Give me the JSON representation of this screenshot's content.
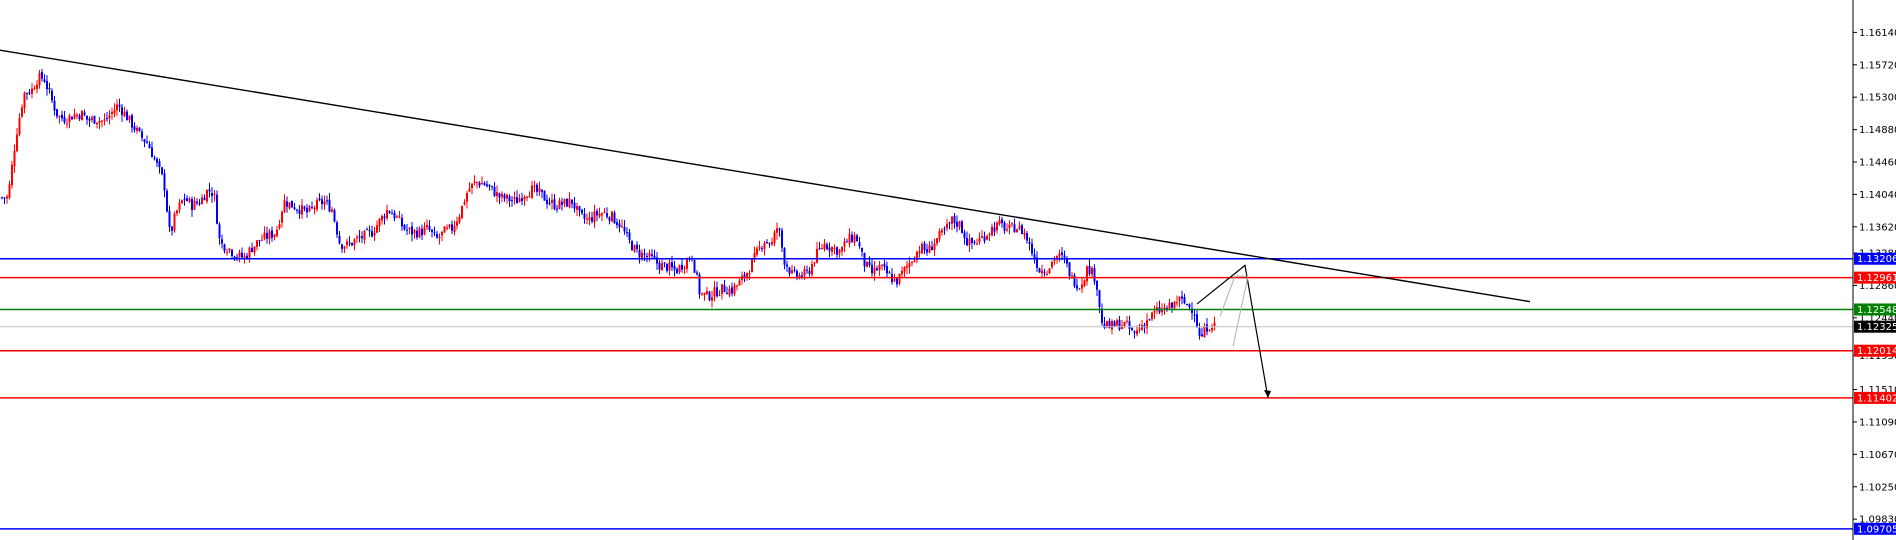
{
  "chart_data": {
    "type": "candlestick",
    "title": "",
    "ylim": [
      1.0956,
      1.1656
    ],
    "yticks": [
      "1.16140",
      "1.15720",
      "1.15300",
      "1.14880",
      "1.14460",
      "1.14040",
      "1.13620",
      "1.13280",
      "1.12860",
      "1.12440",
      "1.11950",
      "1.11510",
      "1.11090",
      "1.10670",
      "1.10250",
      "1.09830"
    ],
    "ytick_values": [
      1.1614,
      1.1572,
      1.153,
      1.1488,
      1.1446,
      1.1404,
      1.1362,
      1.1328,
      1.1286,
      1.1244,
      1.1195,
      1.1151,
      1.1109,
      1.1067,
      1.1025,
      1.0983
    ],
    "up_color": "#ff0000",
    "down_color": "#0000ff",
    "anchors": [
      [
        0,
        1.14
      ],
      [
        8,
        1.14
      ],
      [
        16,
        1.148
      ],
      [
        24,
        1.1535
      ],
      [
        32,
        1.154
      ],
      [
        38,
        1.1555
      ],
      [
        44,
        1.1555
      ],
      [
        52,
        1.1525
      ],
      [
        58,
        1.1505
      ],
      [
        66,
        1.1502
      ],
      [
        74,
        1.1507
      ],
      [
        82,
        1.1508
      ],
      [
        88,
        1.15
      ],
      [
        96,
        1.1502
      ],
      [
        104,
        1.1498
      ],
      [
        112,
        1.151
      ],
      [
        118,
        1.152
      ],
      [
        124,
        1.151
      ],
      [
        132,
        1.1495
      ],
      [
        140,
        1.148
      ],
      [
        148,
        1.147
      ],
      [
        156,
        1.1445
      ],
      [
        164,
        1.142
      ],
      [
        170,
        1.135
      ],
      [
        176,
        1.138
      ],
      [
        184,
        1.14
      ],
      [
        192,
        1.139
      ],
      [
        200,
        1.1395
      ],
      [
        208,
        1.141
      ],
      [
        214,
        1.1405
      ],
      [
        220,
        1.134
      ],
      [
        228,
        1.1335
      ],
      [
        236,
        1.1325
      ],
      [
        244,
        1.1322
      ],
      [
        252,
        1.1335
      ],
      [
        260,
        1.1345
      ],
      [
        268,
        1.135
      ],
      [
        276,
        1.1355
      ],
      [
        284,
        1.1395
      ],
      [
        292,
        1.139
      ],
      [
        300,
        1.1385
      ],
      [
        308,
        1.138
      ],
      [
        316,
        1.139
      ],
      [
        324,
        1.1395
      ],
      [
        332,
        1.1385
      ],
      [
        340,
        1.134
      ],
      [
        348,
        1.1338
      ],
      [
        356,
        1.1345
      ],
      [
        364,
        1.135
      ],
      [
        372,
        1.1355
      ],
      [
        380,
        1.137
      ],
      [
        388,
        1.1385
      ],
      [
        396,
        1.1375
      ],
      [
        404,
        1.136
      ],
      [
        412,
        1.1355
      ],
      [
        420,
        1.1355
      ],
      [
        428,
        1.136
      ],
      [
        436,
        1.1345
      ],
      [
        444,
        1.1355
      ],
      [
        452,
        1.136
      ],
      [
        460,
        1.138
      ],
      [
        468,
        1.141
      ],
      [
        476,
        1.142
      ],
      [
        484,
        1.1418
      ],
      [
        492,
        1.141
      ],
      [
        500,
        1.14
      ],
      [
        508,
        1.1398
      ],
      [
        516,
        1.1395
      ],
      [
        524,
        1.1405
      ],
      [
        532,
        1.141
      ],
      [
        540,
        1.1405
      ],
      [
        548,
        1.1395
      ],
      [
        556,
        1.139
      ],
      [
        564,
        1.1392
      ],
      [
        572,
        1.1395
      ],
      [
        580,
        1.1375
      ],
      [
        588,
        1.137
      ],
      [
        596,
        1.1378
      ],
      [
        604,
        1.138
      ],
      [
        612,
        1.1375
      ],
      [
        620,
        1.1365
      ],
      [
        628,
        1.1345
      ],
      [
        636,
        1.133
      ],
      [
        644,
        1.1325
      ],
      [
        652,
        1.132
      ],
      [
        660,
        1.1312
      ],
      [
        668,
        1.131
      ],
      [
        676,
        1.1305
      ],
      [
        684,
        1.1315
      ],
      [
        692,
        1.1325
      ],
      [
        700,
        1.1275
      ],
      [
        708,
        1.1272
      ],
      [
        716,
        1.1278
      ],
      [
        724,
        1.1282
      ],
      [
        732,
        1.128
      ],
      [
        740,
        1.129
      ],
      [
        748,
        1.1305
      ],
      [
        756,
        1.1325
      ],
      [
        764,
        1.1345
      ],
      [
        772,
        1.134
      ],
      [
        778,
        1.1365
      ],
      [
        784,
        1.132
      ],
      [
        792,
        1.13
      ],
      [
        800,
        1.1298
      ],
      [
        808,
        1.1302
      ],
      [
        816,
        1.1325
      ],
      [
        824,
        1.134
      ],
      [
        832,
        1.1335
      ],
      [
        840,
        1.133
      ],
      [
        848,
        1.1345
      ],
      [
        856,
        1.135
      ],
      [
        864,
        1.1315
      ],
      [
        872,
        1.1302
      ],
      [
        880,
        1.131
      ],
      [
        888,
        1.13
      ],
      [
        896,
        1.129
      ],
      [
        904,
        1.1305
      ],
      [
        912,
        1.132
      ],
      [
        920,
        1.1335
      ],
      [
        928,
        1.133
      ],
      [
        936,
        1.1345
      ],
      [
        944,
        1.1355
      ],
      [
        952,
        1.137
      ],
      [
        960,
        1.1365
      ],
      [
        968,
        1.134
      ],
      [
        976,
        1.1342
      ],
      [
        984,
        1.135
      ],
      [
        992,
        1.136
      ],
      [
        1000,
        1.1365
      ],
      [
        1008,
        1.1358
      ],
      [
        1016,
        1.1362
      ],
      [
        1024,
        1.1355
      ],
      [
        1032,
        1.133
      ],
      [
        1040,
        1.1305
      ],
      [
        1048,
        1.1308
      ],
      [
        1056,
        1.1325
      ],
      [
        1064,
        1.132
      ],
      [
        1072,
        1.1295
      ],
      [
        1080,
        1.1285
      ],
      [
        1088,
        1.131
      ],
      [
        1096,
        1.1295
      ],
      [
        1102,
        1.1235
      ],
      [
        1110,
        1.1232
      ],
      [
        1118,
        1.1236
      ],
      [
        1126,
        1.1235
      ],
      [
        1134,
        1.1222
      ],
      [
        1140,
        1.1232
      ],
      [
        1148,
        1.1242
      ],
      [
        1156,
        1.1252
      ],
      [
        1164,
        1.1255
      ],
      [
        1172,
        1.1258
      ],
      [
        1178,
        1.1268
      ],
      [
        1186,
        1.1262
      ],
      [
        1194,
        1.1255
      ],
      [
        1200,
        1.1215
      ],
      [
        1206,
        1.1232
      ],
      [
        1212,
        1.1236
      ],
      [
        1216,
        1.1232
      ]
    ],
    "trendline": {
      "from": [
        0,
        1.1591
      ],
      "to": [
        1530,
        1.1265
      ],
      "color": "#000000"
    },
    "projection": {
      "points": [
        [
          1197,
          1.1262
        ],
        [
          1245,
          1.1312
        ],
        [
          1268,
          1.114
        ]
      ],
      "color": "#000000"
    },
    "projection_hint": {
      "points": [
        [
          1220,
          1.1246
        ],
        [
          1235,
          1.1298
        ],
        [
          1248,
          1.1298
        ],
        [
          1233,
          1.1207
        ]
      ],
      "color": "#b0b0b0"
    },
    "levels": [
      {
        "label": "1.13206",
        "value": 1.13206,
        "color": "#0000ff"
      },
      {
        "label": "1.12961",
        "value": 1.12961,
        "color": "#ff0000"
      },
      {
        "label": "1.12548",
        "value": 1.12548,
        "color": "#008000"
      },
      {
        "label": "1.12014",
        "value": 1.12014,
        "color": "#ff0000"
      },
      {
        "label": "1.11402",
        "value": 1.11402,
        "color": "#ff0000"
      },
      {
        "label": "1.09705",
        "value": 1.09705,
        "color": "#0000ff"
      }
    ],
    "bid_line": {
      "label": "1.12325",
      "value": 1.12325,
      "color": "#c0c0c0",
      "badge_color": "#000000"
    }
  }
}
